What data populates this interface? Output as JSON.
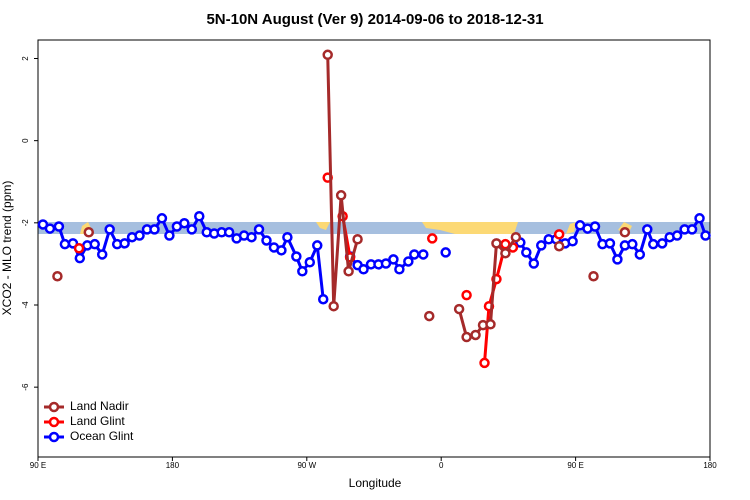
{
  "chart_data": {
    "type": "line",
    "title": "5N-10N August (Ver 9)   2014-09-06 to 2018-12-31",
    "x_label": "Longitude",
    "y_label": "XCO2 - MLO trend (ppm)",
    "xlim": [
      90,
      540
    ],
    "xticks": [
      {
        "value": 90,
        "label": "90 E"
      },
      180,
      {
        "value": 270,
        "label": "90 W"
      },
      {
        "value": 360,
        "label": "0"
      },
      {
        "value": 450,
        "label": "90 E"
      },
      {
        "value": 540,
        "label": "180"
      }
    ],
    "ylim": [
      -7.7,
      2.45
    ],
    "yticks": [
      -6,
      -4,
      -2,
      0,
      2
    ],
    "legend": "bottom-left",
    "series": [
      {
        "name": "Land Nadir",
        "color": "#a52a2a",
        "x": [
          103,
          110,
          124,
          200,
          284,
          288,
          293,
          298,
          304,
          380,
          352,
          370,
          372,
          377,
          383,
          388,
          393,
          397,
          403,
          410,
          430,
          439,
          460,
          462,
          470,
          483
        ],
        "values": [
          -3.3,
          null,
          -2.23,
          null,
          2.09,
          -4.03,
          -1.33,
          -3.18,
          -2.4,
          null,
          -4.27,
          null,
          -4.1,
          -4.78,
          -4.73,
          -4.49,
          -4.47,
          -2.5,
          -2.74,
          -2.35,
          null,
          -2.57,
          null,
          -3.3,
          null,
          -2.23
        ]
      },
      {
        "name": "Land Glint",
        "color": "#ff0000",
        "x": [
          117.5,
          200,
          284,
          286,
          294,
          299,
          330,
          354,
          360,
          377,
          380,
          389,
          392,
          397,
          403,
          408,
          420,
          439
        ],
        "values": [
          -2.62,
          null,
          -0.9,
          null,
          -1.84,
          -2.84,
          null,
          -2.38,
          null,
          -3.76,
          null,
          -5.41,
          -4.03,
          -3.37,
          -2.52,
          -2.6,
          null,
          -2.28
        ]
      },
      {
        "name": "Ocean Glint",
        "color": "#0000ff",
        "x": [
          93.3,
          98,
          104,
          108,
          113.4,
          118,
          123,
          128,
          133,
          138,
          143,
          148,
          153,
          158,
          163,
          168,
          173,
          178,
          183,
          188,
          193,
          198,
          203,
          208,
          213,
          218,
          223,
          228,
          233,
          238,
          243,
          248,
          253,
          257,
          263,
          267,
          272,
          277,
          281,
          283,
          299,
          304,
          308,
          313,
          318,
          323,
          328,
          332,
          338,
          342,
          348,
          350,
          363,
          400,
          413,
          417,
          422,
          427,
          432,
          437,
          443,
          448,
          453,
          458,
          463,
          468,
          473,
          478,
          483,
          488,
          493,
          498,
          502,
          508,
          513,
          518,
          523,
          528,
          533,
          537
        ],
        "values": [
          -2.04,
          -2.14,
          -2.09,
          -2.52,
          -2.5,
          -2.86,
          -2.55,
          -2.52,
          -2.77,
          -2.16,
          -2.52,
          -2.5,
          -2.35,
          -2.31,
          -2.16,
          -2.16,
          -1.89,
          -2.31,
          -2.09,
          -2.01,
          -2.16,
          -1.84,
          -2.23,
          -2.26,
          -2.23,
          -2.23,
          -2.38,
          -2.31,
          -2.35,
          -2.16,
          -2.43,
          -2.6,
          -2.67,
          -2.35,
          -2.82,
          -3.18,
          -2.96,
          -2.55,
          -3.86,
          null,
          -2.82,
          -3.03,
          -3.13,
          -3.01,
          -3.01,
          -2.99,
          -2.89,
          -3.13,
          -2.94,
          -2.77,
          -2.77,
          null,
          -2.72,
          null,
          -2.48,
          -2.72,
          -2.99,
          -2.55,
          -2.4,
          -2.4,
          -2.5,
          -2.45,
          -2.06,
          -2.14,
          -2.09,
          -2.52,
          -2.5,
          -2.89,
          -2.55,
          -2.52,
          -2.77,
          -2.16,
          -2.52,
          -2.5,
          -2.35,
          -2.31,
          -2.16,
          -2.16,
          -1.89,
          -2.31
        ]
      }
    ]
  }
}
